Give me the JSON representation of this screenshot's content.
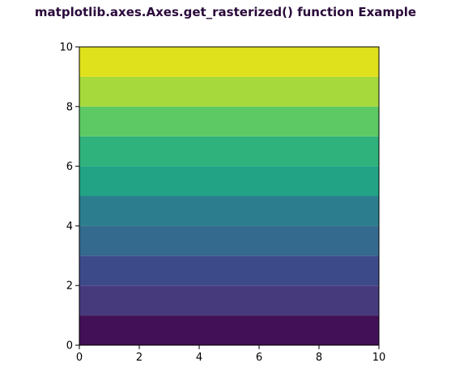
{
  "chart_data": {
    "type": "heatmap",
    "title": "matplotlib.axes.Axes.get_rasterized() function Example",
    "xlabel": "",
    "ylabel": "",
    "xlim": [
      0,
      10
    ],
    "ylim": [
      0,
      10
    ],
    "xticks": [
      "0",
      "2",
      "4",
      "6",
      "8",
      "10"
    ],
    "yticks": [
      "0",
      "2",
      "4",
      "6",
      "8",
      "10"
    ],
    "grid": false,
    "colormap": "viridis",
    "band_edges": [
      0,
      1,
      2,
      3,
      4,
      5,
      6,
      7,
      8,
      9,
      10
    ],
    "band_colors": [
      "#440154",
      "#482878",
      "#3e4989",
      "#31688e",
      "#26828e",
      "#1f9e89",
      "#35b779",
      "#6ece58",
      "#b5de2b",
      "#fde725"
    ],
    "band_colors_display": [
      "#421056",
      "#463a7c",
      "#3d4a8a",
      "#336a8d",
      "#2c7e8e",
      "#22a386",
      "#30b27d",
      "#5cc965",
      "#a6d93b",
      "#e0e11d"
    ]
  }
}
